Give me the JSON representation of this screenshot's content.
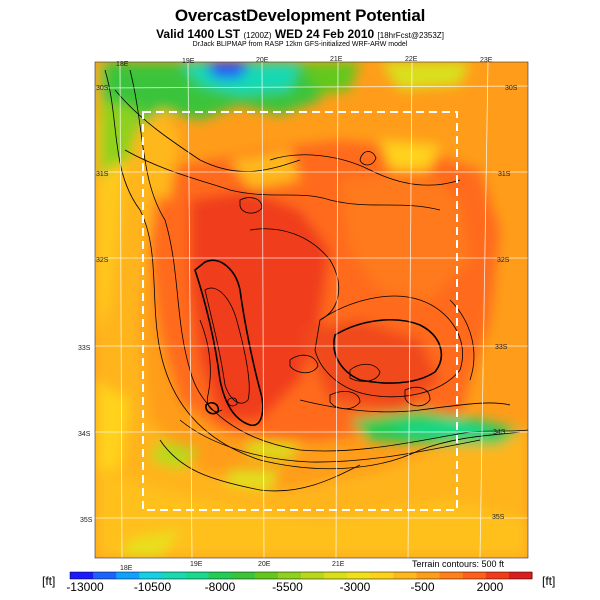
{
  "title": "OvercastDevelopment Potential",
  "subtitle_main": "Valid 1400 LST",
  "subtitle_code": "(1200Z)",
  "subtitle_date": "WED 24 Feb 2010",
  "subtitle_model": "[18hrFcst@2353Z]",
  "credit": "DrJack BLIPMAP from RASP 12km GFS-initialized WRF-ARW model",
  "lon_top": [
    "18E",
    "19E",
    "20E",
    "21E",
    "22E",
    "23E"
  ],
  "lon_bottom": [
    "18E",
    "19E",
    "20E",
    "21E"
  ],
  "lat_left": [
    "30S",
    "31S",
    "32S",
    "33S",
    "34S",
    "35S"
  ],
  "lat_right": [
    "30S",
    "31S",
    "32S",
    "33S",
    "34S",
    "35S"
  ],
  "terrain_note": "Terrain contours: 500 ft",
  "colorbar": {
    "unit_left": "[ft]",
    "unit_right": "[ft]",
    "tick_labels": [
      "-13000",
      "-10500",
      "-8000",
      "-5500",
      "-3000",
      "-500",
      "2000"
    ],
    "min": -13000,
    "max": 2000,
    "colors": [
      "#1a1aff",
      "#1a63ff",
      "#10a0ff",
      "#16cfe6",
      "#19d9b3",
      "#19d98a",
      "#22cc55",
      "#3ac43a",
      "#62c81e",
      "#8fd11c",
      "#b8d91a",
      "#d9e01a",
      "#f0e01a",
      "#ffd21a",
      "#ffb81a",
      "#ff9d1a",
      "#ff7f1a",
      "#ff5f1a",
      "#f03c1a",
      "#d81e1e"
    ]
  }
}
